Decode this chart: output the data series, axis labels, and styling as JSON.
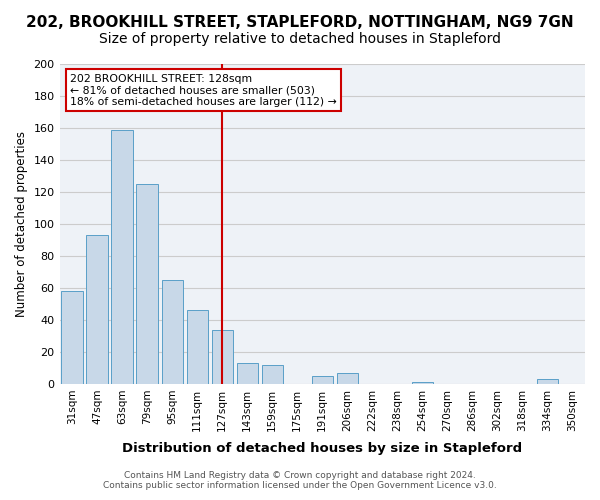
{
  "title1": "202, BROOKHILL STREET, STAPLEFORD, NOTTINGHAM, NG9 7GN",
  "title2": "Size of property relative to detached houses in Stapleford",
  "xlabel": "Distribution of detached houses by size in Stapleford",
  "ylabel": "Number of detached properties",
  "footer1": "Contains HM Land Registry data © Crown copyright and database right 2024.",
  "footer2": "Contains public sector information licensed under the Open Government Licence v3.0.",
  "bar_labels": [
    "31sqm",
    "47sqm",
    "63sqm",
    "79sqm",
    "95sqm",
    "111sqm",
    "127sqm",
    "143sqm",
    "159sqm",
    "175sqm",
    "191sqm",
    "206sqm",
    "222sqm",
    "238sqm",
    "254sqm",
    "270sqm",
    "286sqm",
    "302sqm",
    "318sqm",
    "334sqm",
    "350sqm"
  ],
  "bar_values": [
    58,
    93,
    159,
    125,
    65,
    46,
    34,
    13,
    12,
    0,
    5,
    7,
    0,
    0,
    1,
    0,
    0,
    0,
    0,
    3,
    0
  ],
  "bar_color": "#c8d8e8",
  "bar_edgecolor": "#5a9fc8",
  "vline_color": "#cc0000",
  "annotation_text": "202 BROOKHILL STREET: 128sqm\n← 81% of detached houses are smaller (503)\n18% of semi-detached houses are larger (112) →",
  "annotation_box_color": "#cc0000",
  "ylim": [
    0,
    200
  ],
  "yticks": [
    0,
    20,
    40,
    60,
    80,
    100,
    120,
    140,
    160,
    180,
    200
  ],
  "grid_color": "#cccccc",
  "bg_color": "#eef2f7",
  "title_fontsize": 11,
  "subtitle_fontsize": 10
}
